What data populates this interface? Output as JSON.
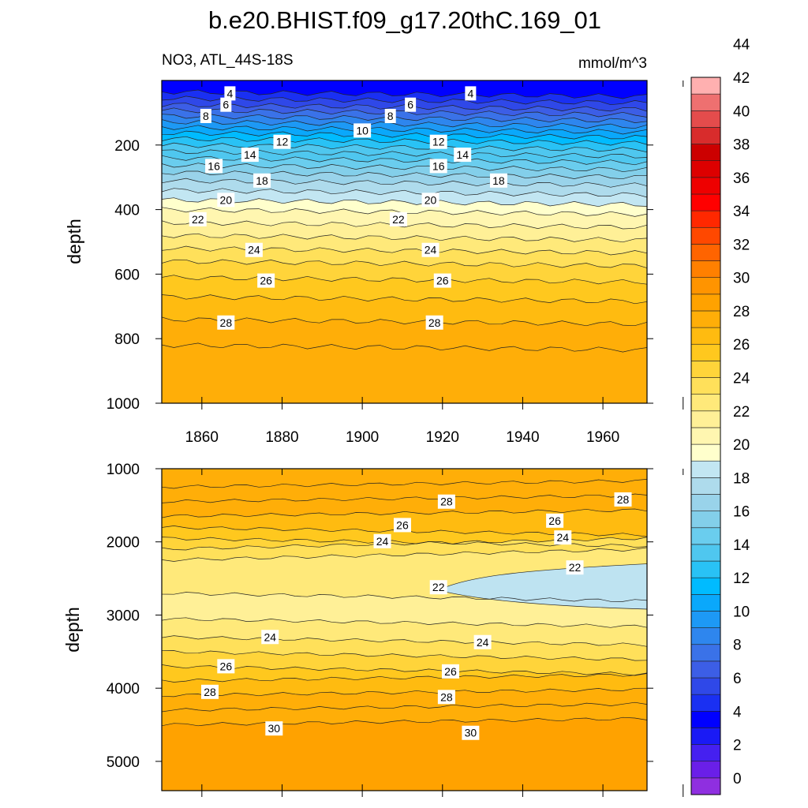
{
  "colors": {
    "scale": [
      "#8f2fe0",
      "#6a1fe8",
      "#4520f0",
      "#1a1af5",
      "#0000ff",
      "#1a30f2",
      "#2f48e8",
      "#3c5ee6",
      "#3a72e8",
      "#2e86ee",
      "#1d99f5",
      "#0aa8fb",
      "#00bbff",
      "#29c2f5",
      "#4fc7ef",
      "#6acdee",
      "#83cfea",
      "#99d3ea",
      "#aedbec",
      "#c2e6f2",
      "#ffffcc",
      "#fff6b0",
      "#fff097",
      "#ffe97a",
      "#ffe05a",
      "#ffd43a",
      "#ffc81e",
      "#ffbb10",
      "#ffae08",
      "#ffa200",
      "#ff9400",
      "#ff8000",
      "#ff6400",
      "#ff4800",
      "#ff2800",
      "#ff0000",
      "#ee0000",
      "#dd0000",
      "#cc0000",
      "#d82c2c",
      "#e44c4c",
      "#ee7070",
      "#ffb0b0"
    ]
  },
  "chart_data": {
    "type": "contour-depth-time",
    "title": "b.e20.BHIST.f09_g17.20thC.169_01",
    "subtitle_left": "NO3, ATL_44S-18S",
    "subtitle_right": "mmol/m^3",
    "xlabel": "",
    "x_ticks": [
      "1860",
      "1880",
      "1900",
      "1920",
      "1940",
      "1960"
    ],
    "x_range": [
      1850,
      1971
    ],
    "colorbar": {
      "labels": [
        "0",
        "2",
        "4",
        "6",
        "8",
        "10",
        "12",
        "14",
        "16",
        "18",
        "20",
        "22",
        "24",
        "26",
        "28",
        "30",
        "32",
        "34",
        "36",
        "38",
        "40",
        "42",
        "44"
      ],
      "levels": [
        -1,
        0,
        1,
        2,
        3,
        4,
        5,
        6,
        7,
        8,
        9,
        10,
        11,
        12,
        13,
        14,
        15,
        16,
        17,
        18,
        19,
        20,
        21,
        22,
        23,
        24,
        25,
        26,
        27,
        28,
        29,
        30,
        31,
        32,
        33,
        34,
        35,
        36,
        37,
        38,
        39,
        40,
        41,
        42,
        43,
        44,
        45
      ]
    },
    "panels": [
      {
        "name": "upper",
        "ylabel": "depth",
        "y_range": [
          0,
          1000
        ],
        "y_ticks": [
          "200",
          "400",
          "600",
          "800",
          "1000"
        ],
        "y_tick_values": [
          200,
          400,
          600,
          800,
          1000
        ],
        "contours": [
          {
            "value": 4,
            "depth": 35
          },
          {
            "value": 5,
            "depth": 55
          },
          {
            "value": 6,
            "depth": 75
          },
          {
            "value": 7,
            "depth": 92
          },
          {
            "value": 8,
            "depth": 110
          },
          {
            "value": 9,
            "depth": 128
          },
          {
            "value": 10,
            "depth": 145
          },
          {
            "value": 11,
            "depth": 162
          },
          {
            "value": 12,
            "depth": 180
          },
          {
            "value": 13,
            "depth": 200
          },
          {
            "value": 14,
            "depth": 220
          },
          {
            "value": 15,
            "depth": 240
          },
          {
            "value": 16,
            "depth": 262
          },
          {
            "value": 17,
            "depth": 285
          },
          {
            "value": 18,
            "depth": 310
          },
          {
            "value": 19,
            "depth": 340
          },
          {
            "value": 20,
            "depth": 370
          },
          {
            "value": 21,
            "depth": 400
          },
          {
            "value": 22,
            "depth": 440
          },
          {
            "value": 23,
            "depth": 480
          },
          {
            "value": 24,
            "depth": 520
          },
          {
            "value": 25,
            "depth": 560
          },
          {
            "value": 26,
            "depth": 610
          },
          {
            "value": 27,
            "depth": 670
          },
          {
            "value": 28,
            "depth": 740
          },
          {
            "value": 29,
            "depth": 820
          }
        ],
        "labels": [
          {
            "text": "4",
            "year": 1867,
            "depth": 40
          },
          {
            "text": "4",
            "year": 1927,
            "depth": 40
          },
          {
            "text": "6",
            "year": 1866,
            "depth": 75
          },
          {
            "text": "6",
            "year": 1912,
            "depth": 75
          },
          {
            "text": "8",
            "year": 1861,
            "depth": 110
          },
          {
            "text": "8",
            "year": 1907,
            "depth": 110
          },
          {
            "text": "10",
            "year": 1900,
            "depth": 155
          },
          {
            "text": "12",
            "year": 1880,
            "depth": 190
          },
          {
            "text": "12",
            "year": 1919,
            "depth": 190
          },
          {
            "text": "14",
            "year": 1872,
            "depth": 230
          },
          {
            "text": "14",
            "year": 1925,
            "depth": 230
          },
          {
            "text": "16",
            "year": 1863,
            "depth": 265
          },
          {
            "text": "16",
            "year": 1919,
            "depth": 265
          },
          {
            "text": "18",
            "year": 1875,
            "depth": 310
          },
          {
            "text": "18",
            "year": 1934,
            "depth": 310
          },
          {
            "text": "20",
            "year": 1866,
            "depth": 370
          },
          {
            "text": "20",
            "year": 1917,
            "depth": 370
          },
          {
            "text": "22",
            "year": 1859,
            "depth": 430
          },
          {
            "text": "22",
            "year": 1909,
            "depth": 430
          },
          {
            "text": "24",
            "year": 1873,
            "depth": 525
          },
          {
            "text": "24",
            "year": 1917,
            "depth": 525
          },
          {
            "text": "26",
            "year": 1876,
            "depth": 620
          },
          {
            "text": "26",
            "year": 1920,
            "depth": 620
          },
          {
            "text": "28",
            "year": 1866,
            "depth": 750
          },
          {
            "text": "28",
            "year": 1918,
            "depth": 750
          }
        ]
      },
      {
        "name": "lower",
        "ylabel": "depth",
        "y_range": [
          1000,
          5400
        ],
        "y_ticks": [
          "1000",
          "2000",
          "3000",
          "4000",
          "5000"
        ],
        "y_tick_values": [
          1000,
          2000,
          3000,
          4000,
          5000
        ],
        "contours": [
          {
            "value": 29,
            "depth": 1250
          },
          {
            "value": 28,
            "depth": 1450
          },
          {
            "value": 27,
            "depth": 1650
          },
          {
            "value": 26,
            "depth": 1800
          },
          {
            "value": 25,
            "depth": 1950
          },
          {
            "value": 24,
            "depth": 2100
          },
          {
            "value": 23,
            "depth": 2250
          },
          {
            "value": 22,
            "depth": 2700
          },
          {
            "value": 23,
            "depth": 3050
          },
          {
            "value": 24,
            "depth": 3300
          },
          {
            "value": 25,
            "depth": 3500
          },
          {
            "value": 26,
            "depth": 3700
          },
          {
            "value": 27,
            "depth": 3900
          },
          {
            "value": 28,
            "depth": 4100
          },
          {
            "value": 29,
            "depth": 4300
          },
          {
            "value": 30,
            "depth": 4500
          }
        ],
        "labels": [
          {
            "text": "28",
            "year": 1921,
            "depth": 1450
          },
          {
            "text": "28",
            "year": 1965,
            "depth": 1420
          },
          {
            "text": "26",
            "year": 1910,
            "depth": 1770
          },
          {
            "text": "26",
            "year": 1948,
            "depth": 1710
          },
          {
            "text": "24",
            "year": 1905,
            "depth": 1990
          },
          {
            "text": "24",
            "year": 1950,
            "depth": 1940
          },
          {
            "text": "22",
            "year": 1919,
            "depth": 2620
          },
          {
            "text": "22",
            "year": 1953,
            "depth": 2350
          },
          {
            "text": "24",
            "year": 1877,
            "depth": 3300
          },
          {
            "text": "24",
            "year": 1930,
            "depth": 3370
          },
          {
            "text": "26",
            "year": 1866,
            "depth": 3700
          },
          {
            "text": "26",
            "year": 1922,
            "depth": 3770
          },
          {
            "text": "28",
            "year": 1862,
            "depth": 4050
          },
          {
            "text": "28",
            "year": 1921,
            "depth": 4120
          },
          {
            "text": "30",
            "year": 1878,
            "depth": 4550
          },
          {
            "text": "30",
            "year": 1927,
            "depth": 4610
          }
        ]
      }
    ]
  }
}
